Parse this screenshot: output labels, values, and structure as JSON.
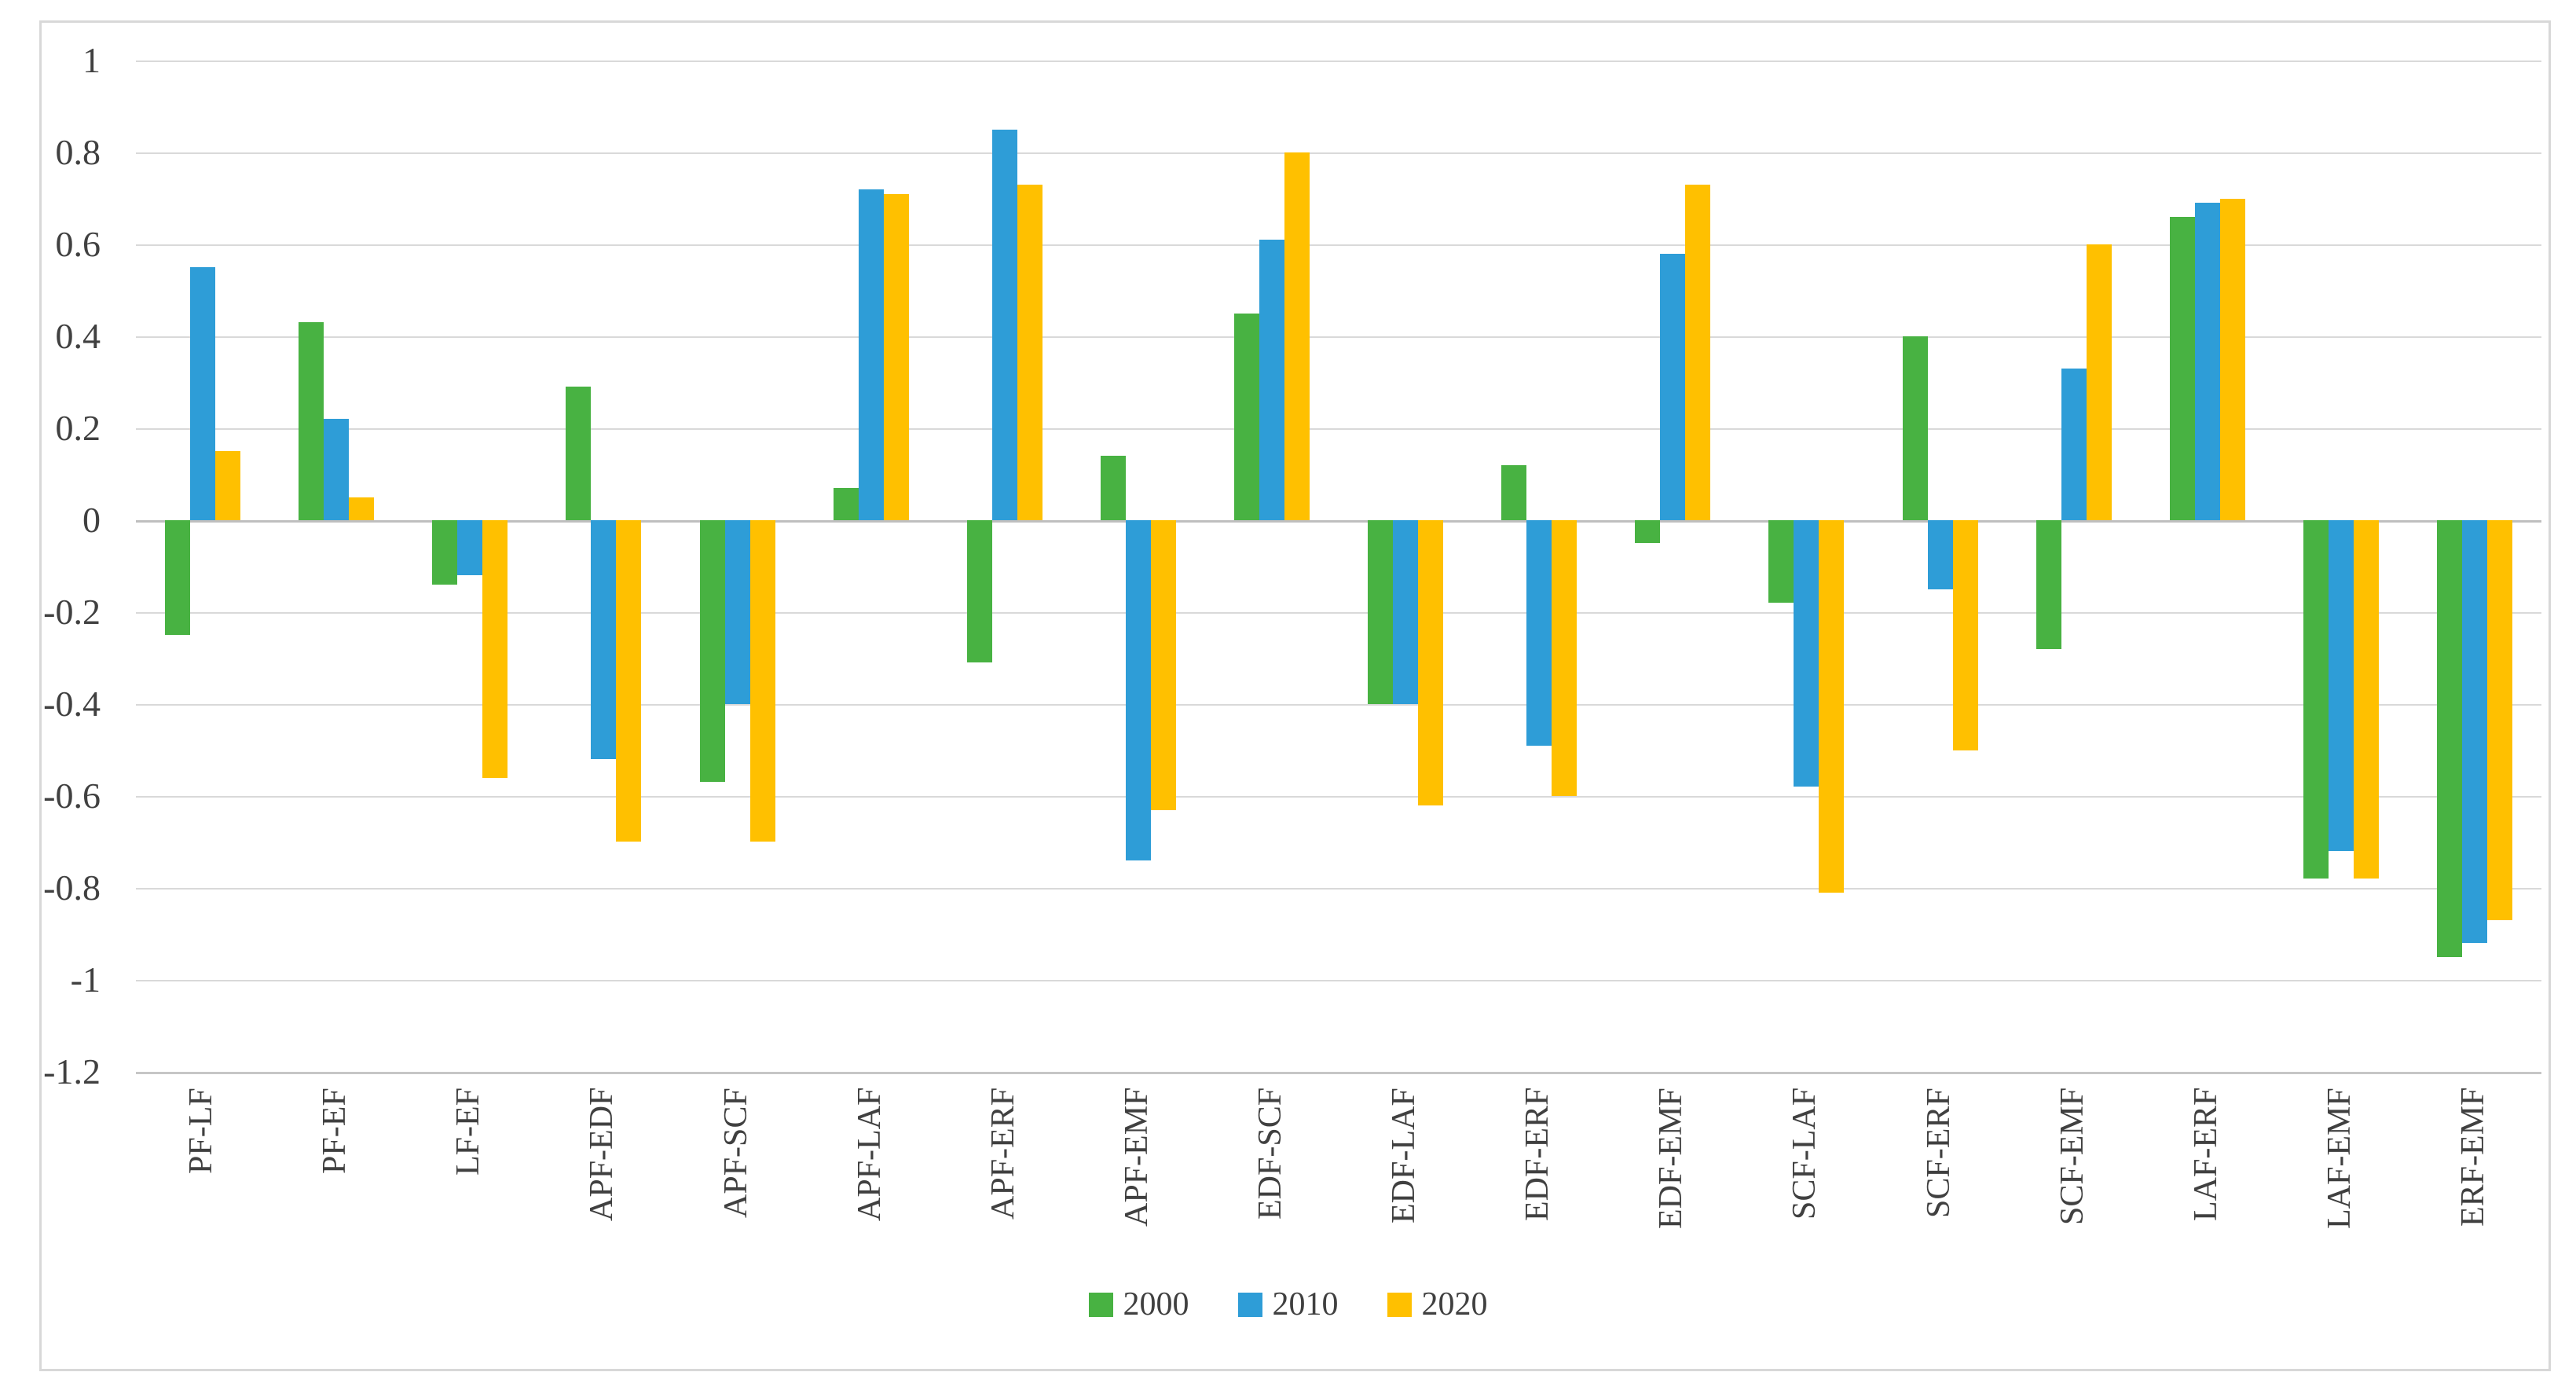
{
  "chart_data": {
    "type": "bar",
    "title": "",
    "xlabel": "",
    "ylabel": "",
    "grid": true,
    "legend_position": "bottom",
    "ylim": [
      -1.2,
      1.0
    ],
    "y_ticks": [
      {
        "label": "1",
        "value": 1.0
      },
      {
        "label": "0.8",
        "value": 0.8
      },
      {
        "label": "0.6",
        "value": 0.6
      },
      {
        "label": "0.4",
        "value": 0.4
      },
      {
        "label": "0.2",
        "value": 0.2
      },
      {
        "label": "0",
        "value": 0.0
      },
      {
        "label": "-0.2",
        "value": -0.2
      },
      {
        "label": "-0.4",
        "value": -0.4
      },
      {
        "label": "-0.6",
        "value": -0.6
      },
      {
        "label": "-0.8",
        "value": -0.8
      },
      {
        "label": "-1",
        "value": -1.0
      },
      {
        "label": "-1.2",
        "value": -1.2
      }
    ],
    "categories": [
      "PF-LF",
      "PF-EF",
      "LF-EF",
      "APF-EDF",
      "APF-SCF",
      "APF-LAF",
      "APF-ERF",
      "APF-EMF",
      "EDF-SCF",
      "EDF-LAF",
      "EDF-ERF",
      "EDF-EMF",
      "SCF-LAF",
      "SCF-ERF",
      "SCF-EMF",
      "LAF-ERF",
      "LAF-EMF",
      "ERF-EMF"
    ],
    "series": [
      {
        "name": "2000",
        "color": "#48b242",
        "values": [
          -0.25,
          0.43,
          -0.14,
          0.29,
          -0.57,
          0.07,
          -0.31,
          0.14,
          0.45,
          -0.4,
          0.12,
          -0.05,
          -0.18,
          0.4,
          -0.28,
          0.66,
          -0.78,
          -0.95
        ]
      },
      {
        "name": "2010",
        "color": "#2e9dd7",
        "values": [
          0.55,
          0.22,
          -0.12,
          -0.52,
          -0.4,
          0.72,
          0.85,
          -0.74,
          0.61,
          -0.4,
          -0.49,
          0.58,
          -0.58,
          -0.15,
          0.33,
          0.69,
          -0.72,
          -0.92
        ]
      },
      {
        "name": "2020",
        "color": "#ffc000",
        "values": [
          0.15,
          0.05,
          -0.56,
          -0.7,
          -0.7,
          0.71,
          0.73,
          -0.63,
          0.8,
          -0.62,
          -0.6,
          0.73,
          -0.81,
          -0.5,
          0.6,
          0.7,
          -0.78,
          -0.87
        ]
      }
    ]
  }
}
